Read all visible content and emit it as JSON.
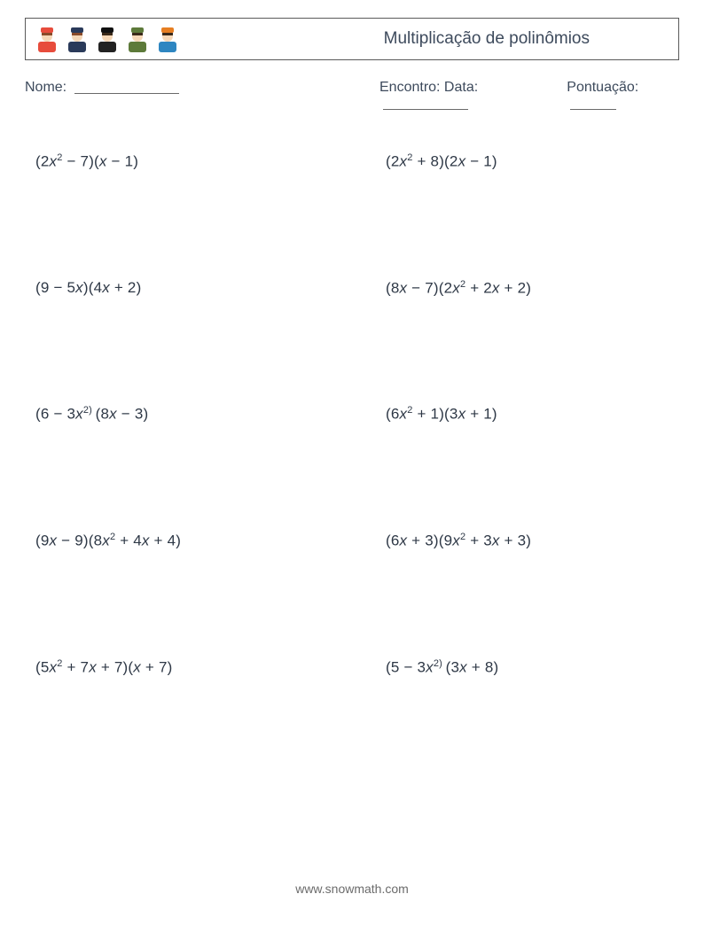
{
  "header": {
    "title": "Multiplicação de polinômios"
  },
  "info": {
    "nome_label": "Nome:",
    "encontro_label": "Encontro: Data:",
    "pontuacao_label": "Pontuação:"
  },
  "icons": [
    {
      "hat": "#e74c3c",
      "body": "#e74c3c",
      "face": "#f5d7b7",
      "hair": "#8a4b2a"
    },
    {
      "hat": "#2a3a5a",
      "body": "#2a3a5a",
      "face": "#f5d7b7",
      "hair": "#8a4b2a"
    },
    {
      "hat": "#111111",
      "body": "#222222",
      "face": "#f5d7b7",
      "hair": "#3b2a1a"
    },
    {
      "hat": "#5d7a3a",
      "body": "#5d7a3a",
      "face": "#f5d7b7",
      "hair": "#3b2a1a"
    },
    {
      "hat": "#e67e22",
      "body": "#2e86c1",
      "face": "#f5d7b7",
      "hair": "#3b2a1a"
    }
  ],
  "problems": [
    {
      "left_html": "(2<span class='x'>x</span><sup>2</sup> − 7)(<span class='x'>x</span> − 1)",
      "right_html": "(2<span class='x'>x</span><sup>2</sup> + 8)(2<span class='x'>x</span> − 1)"
    },
    {
      "left_html": "(9 − 5<span class='x'>x</span>)(4<span class='x'>x</span> + 2)",
      "right_html": "(8<span class='x'>x</span> − 7)(2<span class='x'>x</span><sup>2</sup> + 2<span class='x'>x</span> + 2)"
    },
    {
      "left_html": "(6 − 3<span class='x'>x</span><sup>2)</sup>&thinsp;(8<span class='x'>x</span> − 3)",
      "right_html": "(6<span class='x'>x</span><sup>2</sup> + 1)(3<span class='x'>x</span> + 1)"
    },
    {
      "left_html": "(9<span class='x'>x</span> − 9)(8<span class='x'>x</span><sup>2</sup> + 4<span class='x'>x</span> + 4)",
      "right_html": "(6<span class='x'>x</span> + 3)(9<span class='x'>x</span><sup>2</sup> + 3<span class='x'>x</span> + 3)"
    },
    {
      "left_html": "(5<span class='x'>x</span><sup>2</sup> + 7<span class='x'>x</span> + 7)(<span class='x'>x</span> + 7)",
      "right_html": "(5 − 3<span class='x'>x</span><sup>2)</sup>&thinsp;(3<span class='x'>x</span> + 8)"
    }
  ],
  "footer": {
    "url": "www.snowmath.com"
  },
  "style": {
    "page_bg": "#ffffff",
    "text_color": "#333b4a",
    "border_color": "#5a5a5a",
    "underline_color": "#6a6a6a",
    "title_fontsize": 19,
    "label_fontsize": 16,
    "problem_fontsize": 17,
    "footer_color": "#6b6b6b",
    "uline_name_width": 118,
    "uline_data_width": 96,
    "uline_score_width": 52
  }
}
